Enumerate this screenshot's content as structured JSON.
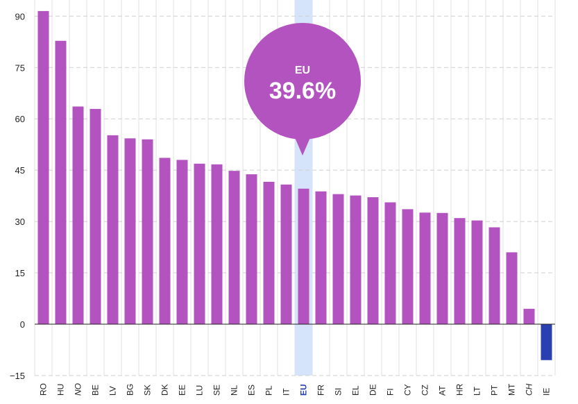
{
  "colors": {
    "bar": "#b353c0",
    "negative_bar": "#2a3fb0",
    "highlight_band": "#d6e4fb",
    "bubble": "#b353c0",
    "eu_label": "#2a3fb0"
  },
  "callout": {
    "label": "EU",
    "value": "39.6%"
  },
  "chart_data": {
    "type": "bar",
    "title": "",
    "xlabel": "",
    "ylabel": "",
    "ylim": [
      -15,
      92
    ],
    "yticks": [
      90,
      75,
      60,
      45,
      30,
      15,
      0,
      -15
    ],
    "grid": true,
    "highlight_category": "EU",
    "italic_categories": [
      "NO",
      "CH"
    ],
    "categories": [
      "RO",
      "HU",
      "NO",
      "BE",
      "LV",
      "BG",
      "SK",
      "DK",
      "EE",
      "LU",
      "SE",
      "NL",
      "ES",
      "PL",
      "IT",
      "EU",
      "FR",
      "SI",
      "EL",
      "DE",
      "FI",
      "CY",
      "CZ",
      "AT",
      "HR",
      "LT",
      "PT",
      "MT",
      "CH",
      "IE"
    ],
    "values": [
      91.5,
      82.8,
      63.6,
      62.9,
      55.2,
      54.3,
      54.0,
      48.6,
      48.0,
      46.9,
      46.7,
      44.8,
      43.8,
      41.6,
      40.8,
      39.6,
      38.8,
      38.0,
      37.6,
      37.1,
      35.6,
      33.6,
      32.6,
      32.5,
      31.0,
      30.3,
      28.3,
      21.0,
      4.5,
      -10.5
    ]
  }
}
